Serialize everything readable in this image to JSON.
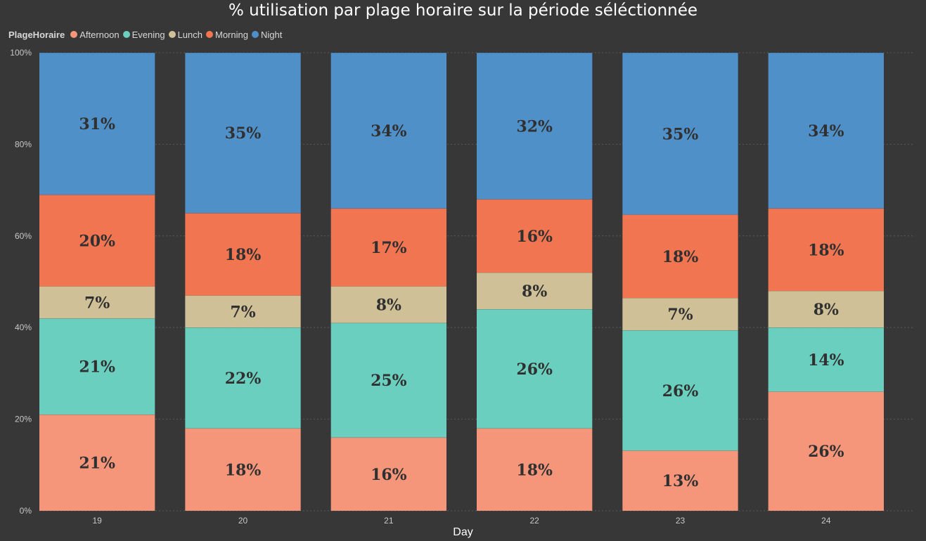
{
  "chart_data": {
    "type": "bar",
    "stacked": "percent",
    "title": "% utilisation par plage horaire sur la période séléctionnée",
    "xlabel": "Day",
    "ylabel": "",
    "ylim": [
      0,
      100
    ],
    "yticks": [
      "0%",
      "20%",
      "40%",
      "60%",
      "80%",
      "100%"
    ],
    "grid": true,
    "legend_title": "PlageHoraire",
    "legend_position": "top-left",
    "categories": [
      "19",
      "20",
      "21",
      "22",
      "23",
      "24"
    ],
    "series": [
      {
        "name": "Afternoon",
        "color": "#F5967A",
        "values": [
          21,
          18,
          16,
          18,
          13,
          26
        ],
        "labels": [
          "21%",
          "18%",
          "16%",
          "18%",
          "13%",
          "26%"
        ]
      },
      {
        "name": "Evening",
        "color": "#6BCFBF",
        "values": [
          21,
          22,
          25,
          26,
          26,
          14
        ],
        "labels": [
          "21%",
          "22%",
          "25%",
          "26%",
          "26%",
          "14%"
        ]
      },
      {
        "name": "Lunch",
        "color": "#CFC097",
        "values": [
          7,
          7,
          8,
          8,
          7,
          8
        ],
        "labels": [
          "7%",
          "7%",
          "8%",
          "8%",
          "7%",
          "8%"
        ]
      },
      {
        "name": "Morning",
        "color": "#F27551",
        "values": [
          20,
          18,
          17,
          16,
          18,
          18
        ],
        "labels": [
          "20%",
          "18%",
          "17%",
          "16%",
          "18%",
          "18%"
        ]
      },
      {
        "name": "Night",
        "color": "#5090C8",
        "values": [
          31,
          35,
          34,
          32,
          35,
          34
        ],
        "labels": [
          "31%",
          "35%",
          "34%",
          "32%",
          "35%",
          "34%"
        ]
      }
    ]
  }
}
